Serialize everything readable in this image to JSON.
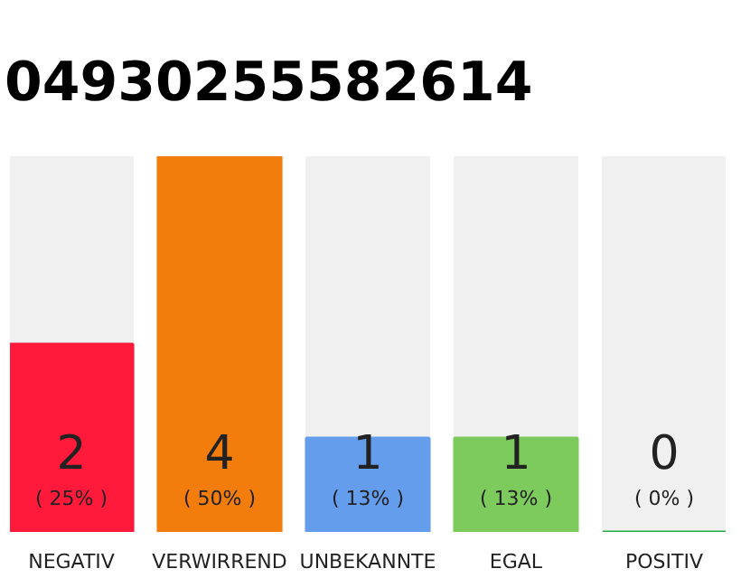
{
  "chart_data": {
    "type": "bar",
    "title": "04930255582614",
    "categories": [
      "NEGATIV",
      "VERWIRREND",
      "UNBEKANNTE",
      "EGAL",
      "POSITIV"
    ],
    "values": [
      2,
      4,
      1,
      1,
      0
    ],
    "colors": [
      "#ff1a3c",
      "#f27c0c",
      "#659ded",
      "#7dcb5c",
      "#29a847"
    ],
    "value_labels": [
      "2\n( 25% )",
      "4\n( 50% )",
      "1\n( 13% )",
      "1\n( 13% )",
      "0\n( 0% )"
    ],
    "ylim": [
      0,
      4
    ],
    "grid": false
  }
}
